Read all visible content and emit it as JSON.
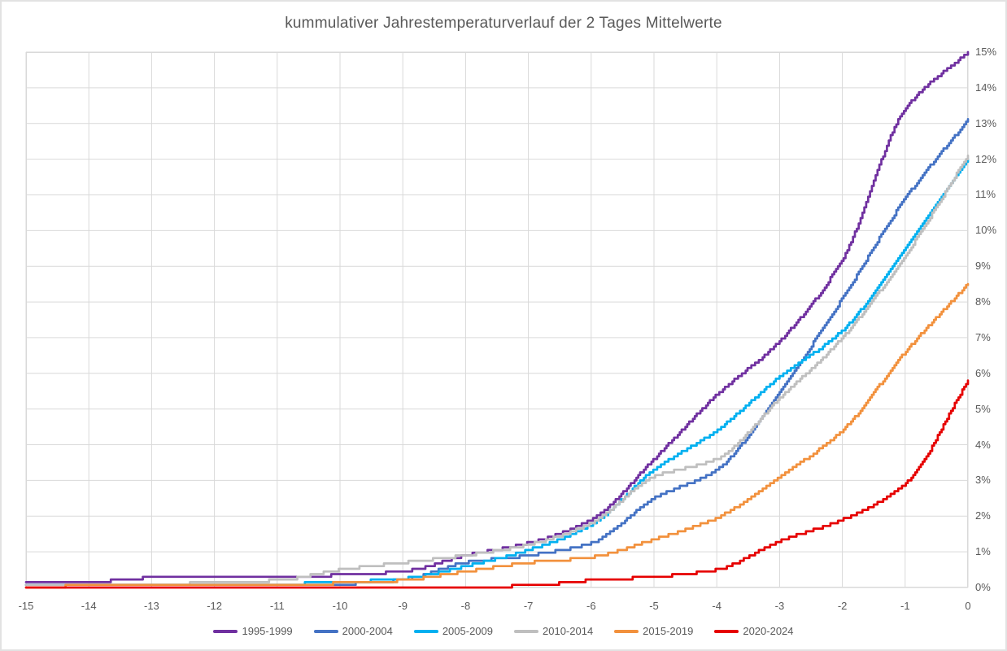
{
  "title": "kummulativer Jahrestemperaturverlauf der 2 Tages Mittelwerte",
  "text_color": "#595959",
  "grid_color": "#d9d9d9",
  "chart_data": {
    "type": "line",
    "subtype": "cumulative-step-curves",
    "title": "kummulativer Jahrestemperaturverlauf der 2 Tages Mittelwerte",
    "xlabel": "",
    "ylabel": "",
    "xlim": [
      -15,
      0
    ],
    "ylim": [
      0,
      15
    ],
    "grid": true,
    "legend_position": "bottom",
    "x_ticks": [
      -15,
      -14,
      -13,
      -12,
      -11,
      -10,
      -9,
      -8,
      -7,
      -6,
      -5,
      -4,
      -3,
      -2,
      -1,
      0
    ],
    "x_tick_labels": [
      "-15",
      "-14",
      "-13",
      "-12",
      "-11",
      "-10",
      "-9",
      "-8",
      "-7",
      "-6",
      "-5",
      "-4",
      "-3",
      "-2",
      "-1",
      "0"
    ],
    "y_ticks": [
      0,
      1,
      2,
      3,
      4,
      5,
      6,
      7,
      8,
      9,
      10,
      11,
      12,
      13,
      14,
      15
    ],
    "y_tick_labels": [
      "0%",
      "1%",
      "2%",
      "3%",
      "4%",
      "5%",
      "6%",
      "7%",
      "8%",
      "9%",
      "10%",
      "11%",
      "12%",
      "13%",
      "14%",
      "15%"
    ],
    "x": [
      -15,
      -14,
      -13,
      -12,
      -11,
      -10,
      -9,
      -8,
      -7,
      -6,
      -5,
      -4,
      -3,
      -2,
      -1,
      0
    ],
    "series": [
      {
        "name": "1995-1999",
        "color": "#7030A0",
        "values": [
          0.13,
          0.15,
          0.27,
          0.27,
          0.28,
          0.35,
          0.45,
          0.9,
          1.25,
          1.9,
          3.6,
          5.4,
          6.9,
          9.2,
          13.4,
          15.0
        ]
      },
      {
        "name": "2000-2004",
        "color": "#4472C4",
        "values": [
          0.05,
          0.05,
          0.05,
          0.06,
          0.08,
          0.1,
          0.22,
          0.7,
          0.9,
          1.25,
          2.5,
          3.3,
          5.5,
          8.1,
          10.9,
          13.1
        ]
      },
      {
        "name": "2005-2009",
        "color": "#00B0F0",
        "values": [
          0.05,
          0.06,
          0.07,
          0.1,
          0.1,
          0.15,
          0.25,
          0.6,
          1.05,
          1.75,
          3.3,
          4.4,
          5.9,
          7.2,
          9.5,
          12.0
        ]
      },
      {
        "name": "2010-2014",
        "color": "#BFBFBF",
        "values": [
          0.05,
          0.07,
          0.08,
          0.14,
          0.2,
          0.5,
          0.7,
          0.9,
          1.2,
          1.8,
          3.1,
          3.6,
          5.3,
          7.0,
          9.3,
          12.1
        ]
      },
      {
        "name": "2015-2019",
        "color": "#F2913D",
        "values": [
          0.03,
          0.04,
          0.04,
          0.05,
          0.07,
          0.12,
          0.2,
          0.45,
          0.7,
          0.85,
          1.35,
          1.95,
          3.1,
          4.4,
          6.6,
          8.5
        ]
      },
      {
        "name": "2020-2024",
        "color": "#E60000",
        "values": [
          0.0,
          0.0,
          0.01,
          0.01,
          0.01,
          0.02,
          0.02,
          0.02,
          0.05,
          0.2,
          0.3,
          0.5,
          1.3,
          1.9,
          2.9,
          5.8
        ]
      }
    ]
  }
}
